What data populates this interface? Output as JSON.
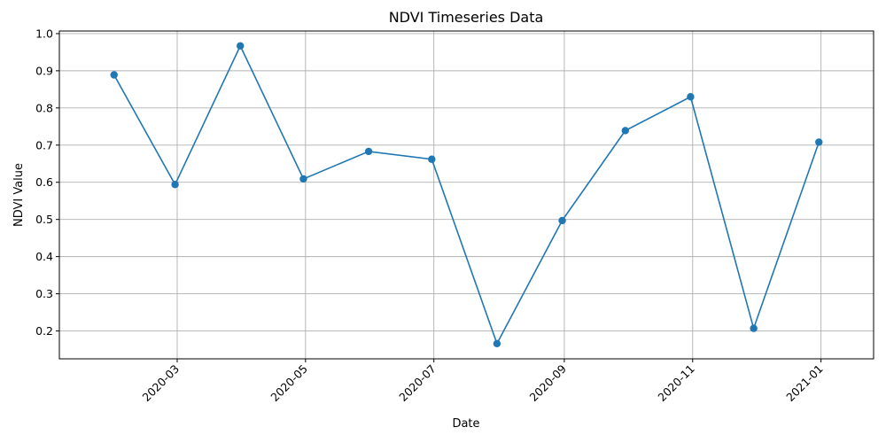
{
  "chart_data": {
    "type": "line",
    "title": "NDVI Timeseries Data",
    "xlabel": "Date",
    "ylabel": "NDVI Value",
    "grid": true,
    "x_range": [
      "2020-01-05",
      "2021-01-26"
    ],
    "ylim": [
      0.125,
      1.007
    ],
    "x_ticks": [
      "2020-03",
      "2020-05",
      "2020-07",
      "2020-09",
      "2020-11",
      "2021-01"
    ],
    "y_ticks": [
      "0.2",
      "0.3",
      "0.4",
      "0.5",
      "0.6",
      "0.7",
      "0.8",
      "0.9",
      "1.0"
    ],
    "series": [
      {
        "color": "#1f77b4",
        "marker": "circle",
        "x": [
          "2020-01-31",
          "2020-02-29",
          "2020-03-31",
          "2020-04-30",
          "2020-05-31",
          "2020-06-30",
          "2020-07-31",
          "2020-08-31",
          "2020-09-30",
          "2020-10-31",
          "2020-11-30",
          "2020-12-31"
        ],
        "y": [
          0.889,
          0.594,
          0.967,
          0.609,
          0.683,
          0.662,
          0.166,
          0.497,
          0.739,
          0.83,
          0.207,
          0.708
        ]
      }
    ]
  }
}
